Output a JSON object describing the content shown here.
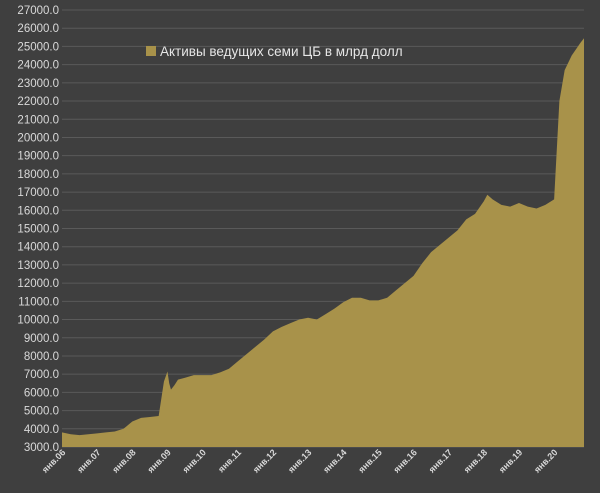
{
  "chart_data": {
    "type": "area",
    "legend": {
      "label": "Активы ведущих семи ЦБ в млрд долл",
      "position": "top-left",
      "color": "#a8924a"
    },
    "ylim": [
      3000,
      27000
    ],
    "y_ticks": [
      "3000.0",
      "4000.0",
      "5000.0",
      "6000.0",
      "7000.0",
      "8000.0",
      "9000.0",
      "10000.0",
      "11000.0",
      "12000.0",
      "13000.0",
      "14000.0",
      "15000.0",
      "16000.0",
      "17000.0",
      "18000.0",
      "19000.0",
      "20000.0",
      "21000.0",
      "22000.0",
      "23000.0",
      "24000.0",
      "25000.0",
      "26000.0",
      "27000.0"
    ],
    "x_ticks": [
      "янв.06",
      "янв.07",
      "янв.08",
      "янв.09",
      "янв.10",
      "янв.11",
      "янв.12",
      "янв.13",
      "янв.14",
      "янв.15",
      "янв.16",
      "янв.17",
      "янв.18",
      "янв.19",
      "янв.20"
    ],
    "grid": true,
    "fill_color": "#a8924a",
    "background": "#3f3f3f",
    "series": [
      {
        "x": [
          2006.0,
          2006.25,
          2006.5,
          2006.75,
          2007.0,
          2007.25,
          2007.5,
          2007.75,
          2008.0,
          2008.25,
          2008.5,
          2008.75,
          2008.9,
          2009.0,
          2009.05,
          2009.1,
          2009.2,
          2009.3,
          2009.5,
          2009.75,
          2010.0,
          2010.25,
          2010.5,
          2010.75,
          2011.0,
          2011.25,
          2011.5,
          2011.75,
          2012.0,
          2012.25,
          2012.5,
          2012.75,
          2013.0,
          2013.25,
          2013.5,
          2013.75,
          2014.0,
          2014.25,
          2014.5,
          2014.75,
          2015.0,
          2015.25,
          2015.5,
          2015.75,
          2016.0,
          2016.25,
          2016.5,
          2016.75,
          2017.0,
          2017.25,
          2017.5,
          2017.75,
          2018.0,
          2018.1,
          2018.25,
          2018.5,
          2018.75,
          2019.0,
          2019.25,
          2019.5,
          2019.75,
          2020.0,
          2020.15,
          2020.3,
          2020.5,
          2020.75,
          2020.85
        ],
        "values": [
          3800,
          3700,
          3650,
          3700,
          3750,
          3800,
          3850,
          4000,
          4400,
          4600,
          4650,
          4700,
          6600,
          7150,
          6500,
          6150,
          6400,
          6700,
          6800,
          6950,
          6950,
          6950,
          7100,
          7300,
          7700,
          8100,
          8500,
          8900,
          9350,
          9600,
          9800,
          10000,
          10100,
          10000,
          10300,
          10600,
          10950,
          11200,
          11200,
          11050,
          11050,
          11200,
          11600,
          12000,
          12400,
          13100,
          13700,
          14100,
          14500,
          14900,
          15500,
          15800,
          16500,
          16850,
          16600,
          16300,
          16200,
          16400,
          16200,
          16100,
          16300,
          16600,
          22000,
          23700,
          24500,
          25200,
          25450
        ]
      }
    ]
  }
}
